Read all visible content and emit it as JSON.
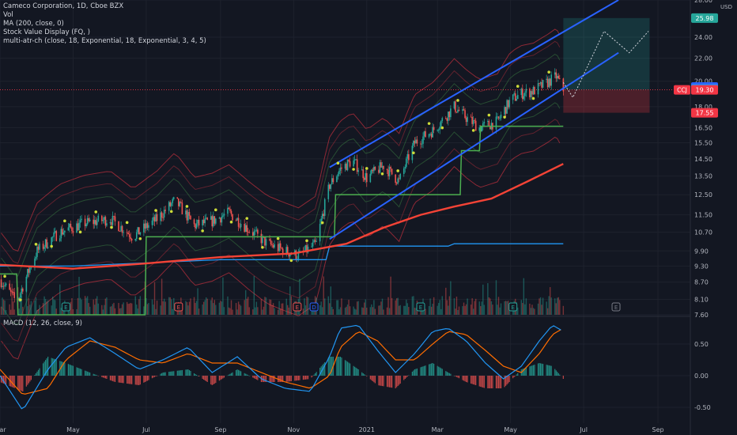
{
  "legend": {
    "title": "Cameco Corporation, 1D, Cboe BZX",
    "vol": "Vol",
    "ma": "MA (200, close, 0)",
    "svd": "Stock Value Display (FQ, )",
    "atr": "multi-atr-ch (close, 18, Exponential, 18, Exponential, 3, 4, 5)"
  },
  "macd_legend": "MACD (12, 26, close, 9)",
  "price_unit": "USD",
  "colors": {
    "background": "#131722",
    "up": "#26a69a",
    "down": "#ef5350",
    "ma200": "#f44336",
    "channel": "#2962ff",
    "value_line": "#2196f3",
    "step_line": "#4caf50",
    "macd": "#2196f3",
    "signal": "#ff6d00",
    "target_zone": "#26a69a",
    "stop_zone": "#f23645"
  },
  "chart_data": {
    "type": "candlestick",
    "price_axis": {
      "ticks": [
        "28.00",
        "24.00",
        "22.00",
        "20.00",
        "18.00",
        "16.50",
        "15.50",
        "14.50",
        "13.50",
        "12.50",
        "11.50",
        "10.70",
        "9.90",
        "9.30",
        "8.70",
        "8.10",
        "7.60"
      ],
      "scale": "log",
      "range": [
        7.6,
        28.0
      ]
    },
    "time_axis": {
      "ticks": [
        "Mar",
        "May",
        "Jul",
        "Sep",
        "Nov",
        "2021",
        "Mar",
        "May",
        "Jul",
        "Sep"
      ]
    },
    "price_badges": [
      {
        "label": "25.98",
        "value": 25.98,
        "color": "#26a69a"
      },
      {
        "label": "19.53",
        "value": 19.53,
        "color": "#2962ff"
      },
      {
        "label": "19.37",
        "value": 19.37,
        "color": "#2196f3"
      },
      {
        "label": "19.30",
        "value": 19.3,
        "color": "#f23645",
        "tag": "CCJ"
      },
      {
        "label": "17.55",
        "value": 17.55,
        "color": "#f23645"
      }
    ],
    "price_path": {
      "x": [
        "2020-03-01",
        "2020-03-15",
        "2020-04-01",
        "2020-04-20",
        "2020-05-10",
        "2020-06-01",
        "2020-06-20",
        "2020-07-10",
        "2020-07-25",
        "2020-08-10",
        "2020-08-25",
        "2020-09-08",
        "2020-09-25",
        "2020-10-10",
        "2020-10-25",
        "2020-11-05",
        "2020-11-20",
        "2020-12-01",
        "2020-12-10",
        "2020-12-20",
        "2021-01-01",
        "2021-01-15",
        "2021-01-28",
        "2021-02-10",
        "2021-02-25",
        "2021-03-05",
        "2021-03-15",
        "2021-03-25",
        "2021-04-05",
        "2021-04-20",
        "2021-05-01",
        "2021-05-10",
        "2021-05-20",
        "2021-06-01",
        "2021-06-08",
        "2021-06-14"
      ],
      "close": [
        8.8,
        8.0,
        9.9,
        10.7,
        11.1,
        11.3,
        10.5,
        11.3,
        12.2,
        11.0,
        11.2,
        11.6,
        10.8,
        10.2,
        9.9,
        9.7,
        10.2,
        13.0,
        13.9,
        14.4,
        13.4,
        14.1,
        13.2,
        15.5,
        16.3,
        17.0,
        18.0,
        17.2,
        16.5,
        16.9,
        18.5,
        19.0,
        19.2,
        19.9,
        20.4,
        19.3
      ]
    },
    "ma200": {
      "x": [
        "2020-03-01",
        "2020-05-01",
        "2020-07-01",
        "2020-09-01",
        "2020-11-01",
        "2020-12-15",
        "2021-01-15",
        "2021-02-15",
        "2021-03-15",
        "2021-04-15",
        "2021-05-15",
        "2021-06-14"
      ],
      "values": [
        9.35,
        9.2,
        9.4,
        9.65,
        9.8,
        10.2,
        10.9,
        11.5,
        11.9,
        12.3,
        13.2,
        14.2
      ]
    },
    "value_line": {
      "x": [
        "2020-03-01",
        "2020-05-01",
        "2020-09-01",
        "2020-11-28",
        "2020-12-01",
        "2021-03-10",
        "2021-03-15",
        "2021-06-14"
      ],
      "values": [
        9.3,
        9.3,
        9.55,
        9.55,
        10.1,
        10.1,
        10.2,
        10.2
      ]
    },
    "step_line": {
      "x": [
        "2020-03-01",
        "2020-03-15",
        "2020-03-16",
        "2020-04-20",
        "2020-05-15",
        "2020-06-30",
        "2020-07-01",
        "2020-11-20",
        "2020-12-05",
        "2020-12-06",
        "2021-02-15",
        "2021-03-20",
        "2021-03-21",
        "2021-04-05",
        "2021-04-06",
        "2021-06-14"
      ],
      "values": [
        9.0,
        9.0,
        7.6,
        7.6,
        7.6,
        7.6,
        10.5,
        10.5,
        10.5,
        12.5,
        12.5,
        12.5,
        15.0,
        15.0,
        16.6,
        16.6
      ]
    },
    "channel": {
      "upper": {
        "x": [
          "2020-12-01",
          "2021-07-30"
        ],
        "values": [
          14.0,
          28.0
        ]
      },
      "lower": {
        "x": [
          "2020-12-01",
          "2021-07-30"
        ],
        "values": [
          10.4,
          22.5
        ]
      }
    },
    "projection": {
      "x": [
        "2021-06-14",
        "2021-06-22",
        "2021-07-18",
        "2021-08-08",
        "2021-08-24"
      ],
      "values": [
        19.9,
        18.7,
        24.6,
        22.5,
        24.6
      ]
    },
    "position": {
      "start": "2021-06-14",
      "end": "2021-08-25",
      "entry": 19.3,
      "target": 25.98,
      "stop": 17.55
    },
    "earnings_markers": [
      {
        "x": "2020-04-25",
        "label": "E",
        "color": "#26a69a"
      },
      {
        "x": "2020-07-28",
        "label": "E",
        "color": "#ef5350"
      },
      {
        "x": "2020-11-04",
        "label": "E",
        "color": "#ef5350"
      },
      {
        "x": "2020-11-18",
        "label": "D",
        "color": "#2962ff"
      },
      {
        "x": "2021-02-15",
        "label": "E",
        "color": "#26a69a"
      },
      {
        "x": "2021-05-03",
        "label": "E",
        "color": "#26a69a"
      },
      {
        "x": "2021-07-28",
        "label": "E",
        "color": "#787b86"
      }
    ],
    "macd": {
      "axis_ticks": [
        "0.50",
        "0.00",
        "-0.50"
      ],
      "range": [
        -0.75,
        0.9
      ],
      "x": [
        "2020-03-01",
        "2020-03-20",
        "2020-04-10",
        "2020-04-25",
        "2020-05-15",
        "2020-06-05",
        "2020-06-25",
        "2020-07-15",
        "2020-08-05",
        "2020-08-25",
        "2020-09-15",
        "2020-10-05",
        "2020-10-25",
        "2020-11-15",
        "2020-12-01",
        "2020-12-10",
        "2020-12-25",
        "2021-01-10",
        "2021-01-25",
        "2021-02-10",
        "2021-02-25",
        "2021-03-10",
        "2021-03-25",
        "2021-04-10",
        "2021-04-25",
        "2021-05-10",
        "2021-05-25",
        "2021-06-05",
        "2021-06-14"
      ],
      "macd": [
        0.0,
        -0.55,
        0.1,
        0.45,
        0.6,
        0.35,
        0.1,
        0.25,
        0.45,
        0.05,
        0.3,
        -0.05,
        -0.2,
        -0.25,
        0.3,
        0.75,
        0.8,
        0.4,
        0.05,
        0.35,
        0.7,
        0.75,
        0.55,
        0.2,
        -0.05,
        0.15,
        0.55,
        0.8,
        0.7
      ],
      "signal": [
        0.1,
        -0.3,
        -0.2,
        0.25,
        0.55,
        0.45,
        0.25,
        0.2,
        0.35,
        0.2,
        0.2,
        0.05,
        -0.1,
        -0.2,
        0.0,
        0.45,
        0.7,
        0.55,
        0.25,
        0.25,
        0.5,
        0.7,
        0.65,
        0.4,
        0.15,
        0.05,
        0.35,
        0.65,
        0.75
      ]
    }
  }
}
